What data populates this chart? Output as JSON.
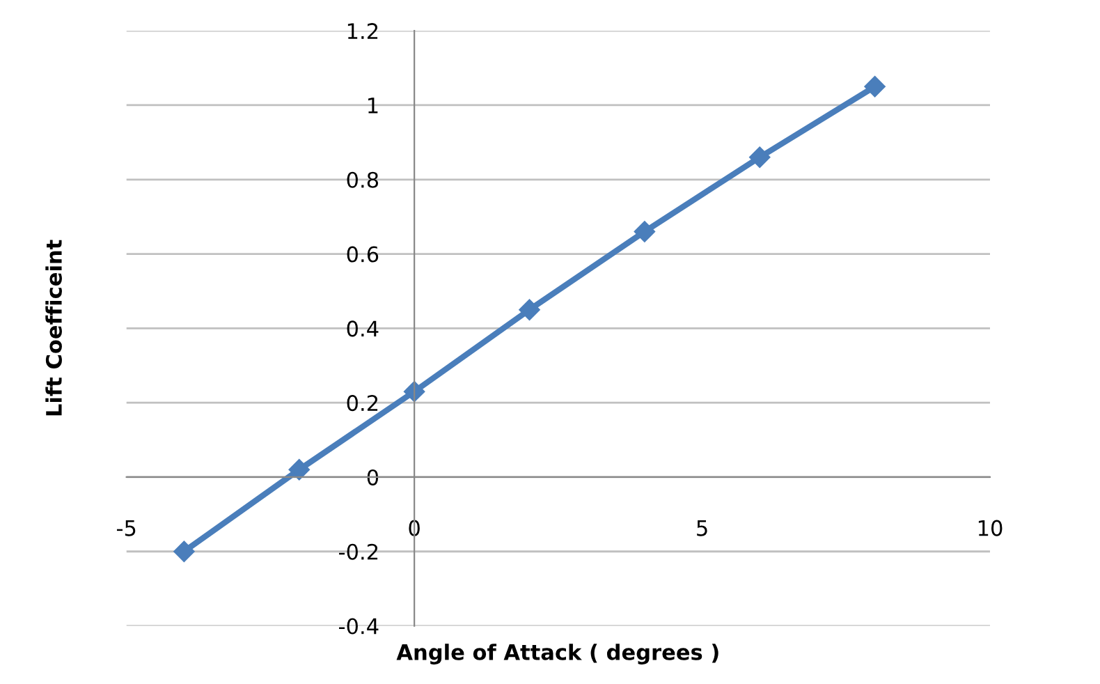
{
  "chart_data": {
    "type": "line",
    "xlabel": "Angle of Attack ( degrees )",
    "ylabel": "Lift Coefficeint",
    "x": [
      -4,
      -2,
      0,
      2,
      4,
      6,
      8
    ],
    "series": [
      {
        "color": "#4a7ebb",
        "values": [
          -0.2,
          0.02,
          0.23,
          0.45,
          0.66,
          0.86,
          1.05
        ]
      }
    ],
    "xlim": [
      -5,
      10
    ],
    "xticks": [
      -5,
      0,
      5,
      10
    ],
    "ylim": [
      -0.4,
      1.2
    ],
    "yticks": [
      -0.4,
      -0.2,
      0,
      0.2,
      0.4,
      0.6,
      0.8,
      1,
      1.2
    ],
    "grid": "y",
    "marker": "diamond",
    "line_style": "solid",
    "legend": false
  }
}
